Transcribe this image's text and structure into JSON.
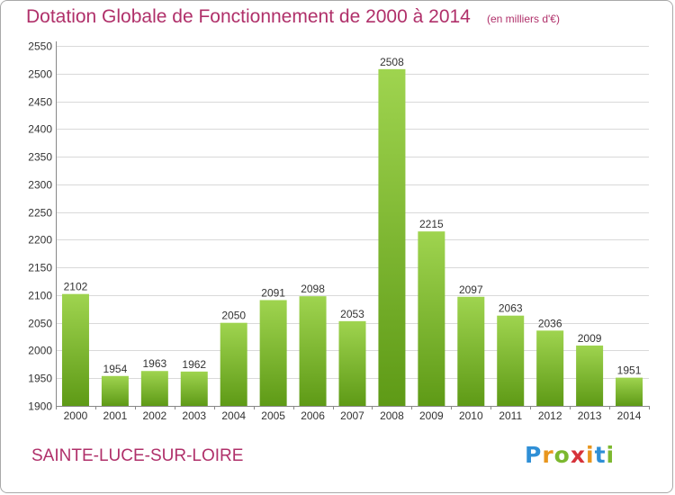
{
  "header": {
    "title": "Dotation Globale de Fonctionnement de 2000 à 2014",
    "subtitle": "(en milliers d'€)"
  },
  "footer": {
    "location": "SAINTE-LUCE-SUR-LOIRE",
    "logo": "Proxiti"
  },
  "colors": {
    "title": "#b0306a",
    "bar_light": "#9fd44f",
    "bar_dark": "#5e9a16",
    "grid": "#d9d9d9"
  },
  "chart_data": {
    "type": "bar",
    "title": "Dotation Globale de Fonctionnement de 2000 à 2014",
    "xlabel": "",
    "ylabel": "",
    "unit": "(en milliers d'€)",
    "categories": [
      "2000",
      "2001",
      "2002",
      "2003",
      "2004",
      "2005",
      "2006",
      "2007",
      "2008",
      "2009",
      "2010",
      "2011",
      "2012",
      "2013",
      "2014"
    ],
    "values": [
      2102,
      1954,
      1963,
      1962,
      2050,
      2091,
      2098,
      2053,
      2508,
      2215,
      2097,
      2063,
      2036,
      2009,
      1951
    ],
    "ylim": [
      1900,
      2550
    ],
    "yticks": [
      1900,
      1950,
      2000,
      2050,
      2100,
      2150,
      2200,
      2250,
      2300,
      2350,
      2400,
      2450,
      2500,
      2550
    ],
    "grid": true
  }
}
